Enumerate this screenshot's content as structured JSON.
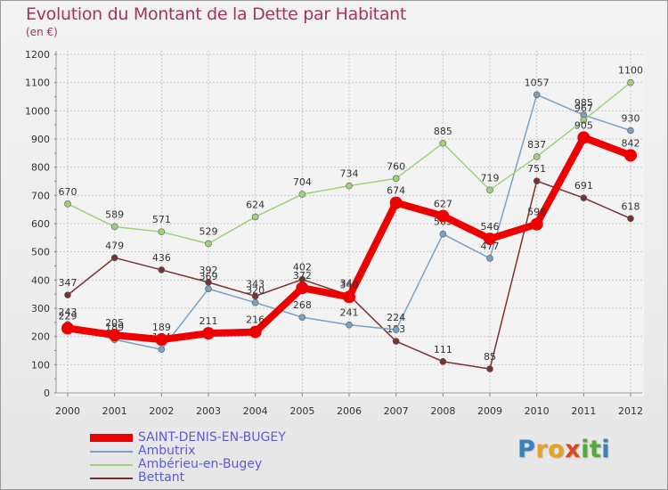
{
  "title": "Evolution du Montant de la Dette par Habitant",
  "subtitle": "(en €)",
  "logo_letters": [
    "P",
    "r",
    "o",
    "x",
    "i",
    "t",
    "i"
  ],
  "logo_colors": [
    "#3a7fc0",
    "#e8a21c",
    "#e8a21c",
    "#d84a24",
    "#55a83a",
    "#55a83a",
    "#3a7fc0"
  ],
  "chart_data": {
    "type": "line",
    "x": [
      "2000",
      "2001",
      "2002",
      "2003",
      "2004",
      "2005",
      "2006",
      "2007",
      "2008",
      "2009",
      "2010",
      "2011",
      "2012"
    ],
    "ylim": [
      0,
      1200
    ],
    "yticks": [
      "0",
      "100",
      "200",
      "300",
      "400",
      "500",
      "600",
      "700",
      "800",
      "900",
      "1000",
      "1100",
      "1200"
    ],
    "grid": true,
    "legend_position": "bottom-left",
    "series": [
      {
        "name": "SAINT-DENIS-EN-BUGEY",
        "color": "#ee0000",
        "values": [
          229,
          205,
          189,
          211,
          216,
          372,
          340,
          674,
          627,
          546,
          598,
          905,
          842
        ]
      },
      {
        "name": "Ambutrix",
        "color": "#7aa0c4",
        "values": [
          243,
          189,
          154,
          369,
          320,
          268,
          241,
          224,
          563,
          477,
          1057,
          985,
          930
        ]
      },
      {
        "name": "Ambérieu-en-Bugey",
        "color": "#9ed27a",
        "values": [
          670,
          589,
          571,
          529,
          624,
          704,
          734,
          760,
          885,
          719,
          837,
          967,
          1100
        ]
      },
      {
        "name": "Bettant",
        "color": "#7a3131",
        "values": [
          347,
          479,
          436,
          392,
          343,
          402,
          346,
          183,
          111,
          85,
          751,
          691,
          618
        ]
      }
    ]
  }
}
